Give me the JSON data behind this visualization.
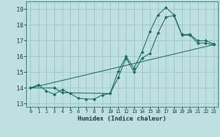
{
  "xlabel": "Humidex (Indice chaleur)",
  "xlim": [
    -0.5,
    23.5
  ],
  "ylim": [
    12.8,
    19.5
  ],
  "yticks": [
    13,
    14,
    15,
    16,
    17,
    18,
    19
  ],
  "xticks": [
    0,
    1,
    2,
    3,
    4,
    5,
    6,
    7,
    8,
    9,
    10,
    11,
    12,
    13,
    14,
    15,
    16,
    17,
    18,
    19,
    20,
    21,
    22,
    23
  ],
  "bg_color": "#bfe0e0",
  "line_color": "#1a6b5a",
  "grid_color": "#9ec8c8",
  "series1_x": [
    0,
    1,
    2,
    3,
    4,
    5,
    6,
    7,
    8,
    9,
    10,
    11,
    12,
    13,
    14,
    15,
    16,
    17,
    18,
    19,
    20,
    21,
    22,
    23
  ],
  "series1_y": [
    14.0,
    14.2,
    13.8,
    13.6,
    13.9,
    13.65,
    13.35,
    13.3,
    13.3,
    13.55,
    13.65,
    14.65,
    15.9,
    15.0,
    15.9,
    16.2,
    17.5,
    18.5,
    18.6,
    17.35,
    17.35,
    16.85,
    16.85,
    16.75
  ],
  "series2_x": [
    0,
    3,
    4,
    10,
    11,
    12,
    13,
    14,
    15,
    16,
    17,
    18,
    19,
    20,
    21,
    22,
    23
  ],
  "series2_y": [
    14.0,
    14.0,
    13.7,
    13.65,
    15.05,
    16.0,
    15.25,
    16.3,
    17.6,
    18.65,
    19.1,
    18.65,
    17.4,
    17.4,
    17.0,
    17.0,
    16.8
  ],
  "series3_x": [
    0,
    23
  ],
  "series3_y": [
    14.0,
    16.75
  ]
}
